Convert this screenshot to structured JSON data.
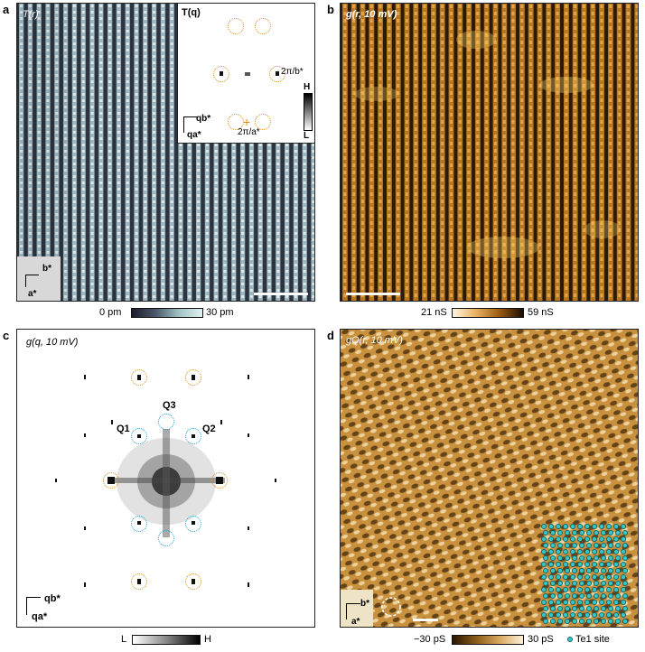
{
  "panels": {
    "a": {
      "label": "a",
      "title": "T(r)",
      "inset_title": "T(q)",
      "inset_qlabel_b": "2π/b*",
      "inset_qlabel_a": "2π/a*",
      "inset_scale_high": "H",
      "inset_scale_low": "L",
      "axis_b": "b*",
      "axis_a": "a*",
      "inset_axis_qb": "qb*",
      "inset_axis_qa": "qa*",
      "colorbar_min": "0 pm",
      "colorbar_max": "30 pm"
    },
    "b": {
      "label": "b",
      "title": "g(r, 10 mV)",
      "colorbar_min": "21 nS",
      "colorbar_max": "59 nS"
    },
    "c": {
      "label": "c",
      "title": "g(q, 10 mV)",
      "q1": "Q1",
      "q2": "Q2",
      "q3": "Q3",
      "axis_qb": "qb*",
      "axis_qa": "qa*",
      "colorbar_min": "L",
      "colorbar_max": "H"
    },
    "d": {
      "label": "d",
      "title": "gQ(r, 10 mV)",
      "axis_b": "b*",
      "axis_a": "a*",
      "legend": "Te1 site",
      "colorbar_min": "−30 pS",
      "colorbar_max": "30 pS"
    }
  },
  "colors": {
    "orange_ring": "#e08a1e",
    "blue_ring": "#22a0d6",
    "te_site": "#3cc7c7"
  }
}
